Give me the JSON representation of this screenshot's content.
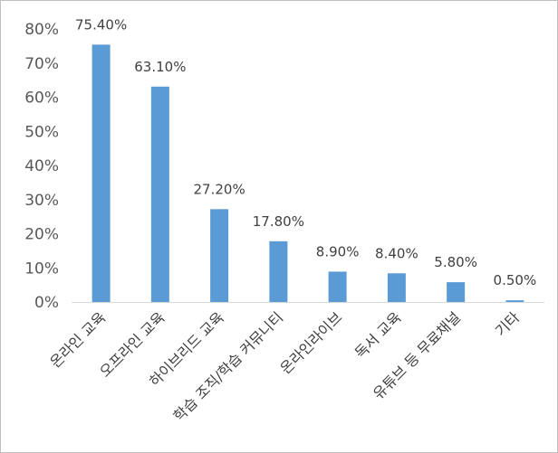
{
  "chart_data": {
    "type": "bar",
    "categories": [
      "온라인 교육",
      "오프라인 교육",
      "하이브리드 교육",
      "학습 조직/학습 커뮤니티",
      "온라인라이브",
      "독서 교육",
      "유튜브 등 무료채널",
      "기타"
    ],
    "values": [
      75.4,
      63.1,
      27.2,
      17.8,
      8.9,
      8.4,
      5.8,
      0.5
    ],
    "data_labels": [
      "75.40%",
      "63.10%",
      "27.20%",
      "17.80%",
      "8.90%",
      "8.40%",
      "5.80%",
      "0.50%"
    ],
    "y_ticks": [
      "0%",
      "10%",
      "20%",
      "30%",
      "40%",
      "50%",
      "60%",
      "70%",
      "80%"
    ],
    "ylim": [
      0,
      80
    ],
    "grid": false,
    "legend": "none",
    "bar_color": "#5B9BD5",
    "axis_color": "#d9d9d9"
  }
}
